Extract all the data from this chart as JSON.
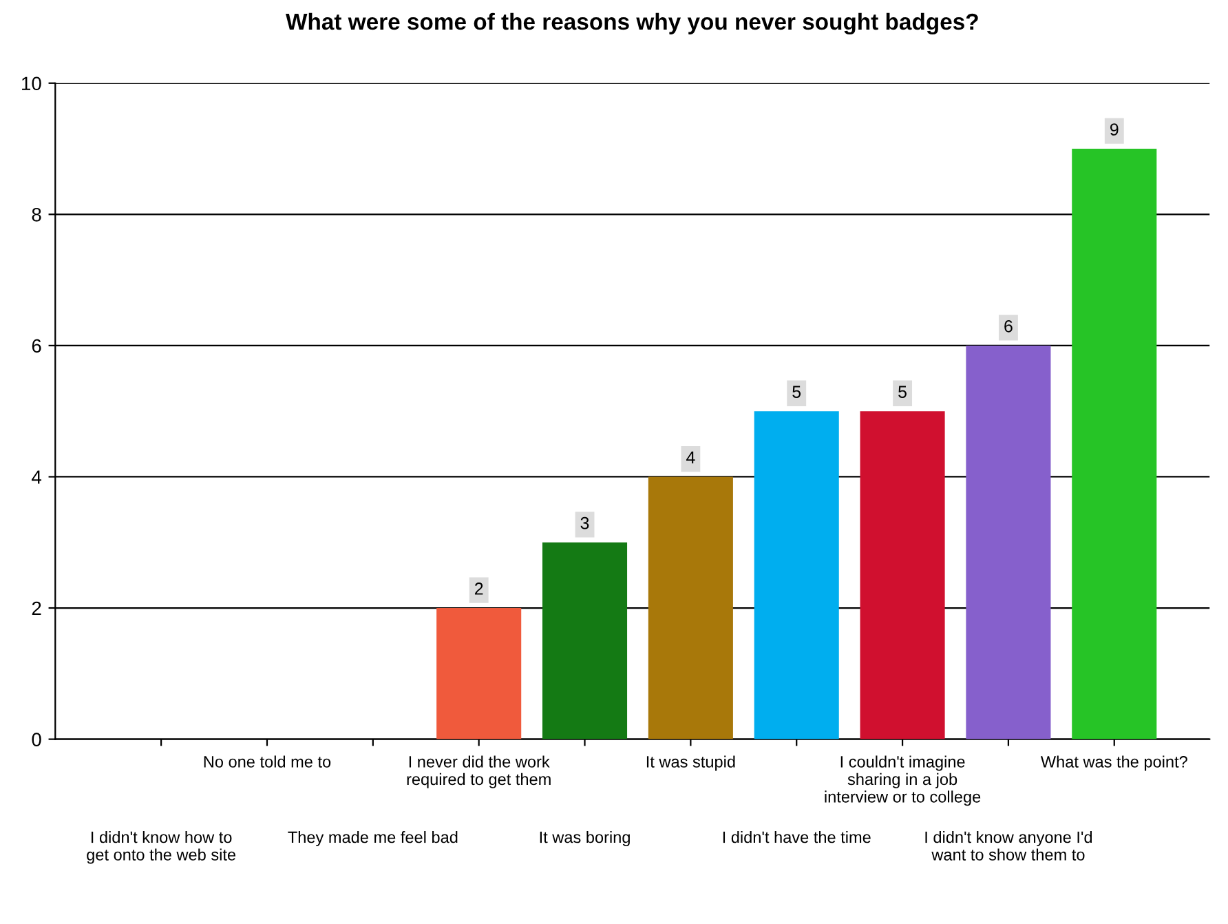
{
  "chart_data": {
    "type": "bar",
    "title": "What were some of the reasons why you never sought badges?",
    "categories": [
      "I didn't know how to\nget onto the web site",
      "No one told me to",
      "They made me feel bad",
      "I never did the work\nrequired to get them",
      "It was boring",
      "It was stupid",
      "I didn't have the time",
      "I couldn't imagine\nsharing in a job\ninterview or to college",
      "I didn't know anyone I'd\nwant to show them to",
      "What was the point?"
    ],
    "values": [
      0,
      0,
      0,
      2,
      3,
      4,
      5,
      5,
      6,
      9
    ],
    "colors": [
      "#ff6347",
      "#ff6347",
      "#ff6347",
      "#f05a3c",
      "#147a14",
      "#a8780a",
      "#00aeef",
      "#d0102f",
      "#8660cc",
      "#26c426"
    ],
    "value_labels": [
      null,
      null,
      null,
      "2",
      "3",
      "4",
      "5",
      "5",
      "6",
      "9"
    ],
    "ylim": [
      0,
      10
    ],
    "yticks": [
      0,
      2,
      4,
      6,
      8,
      10
    ],
    "grid": "y"
  }
}
